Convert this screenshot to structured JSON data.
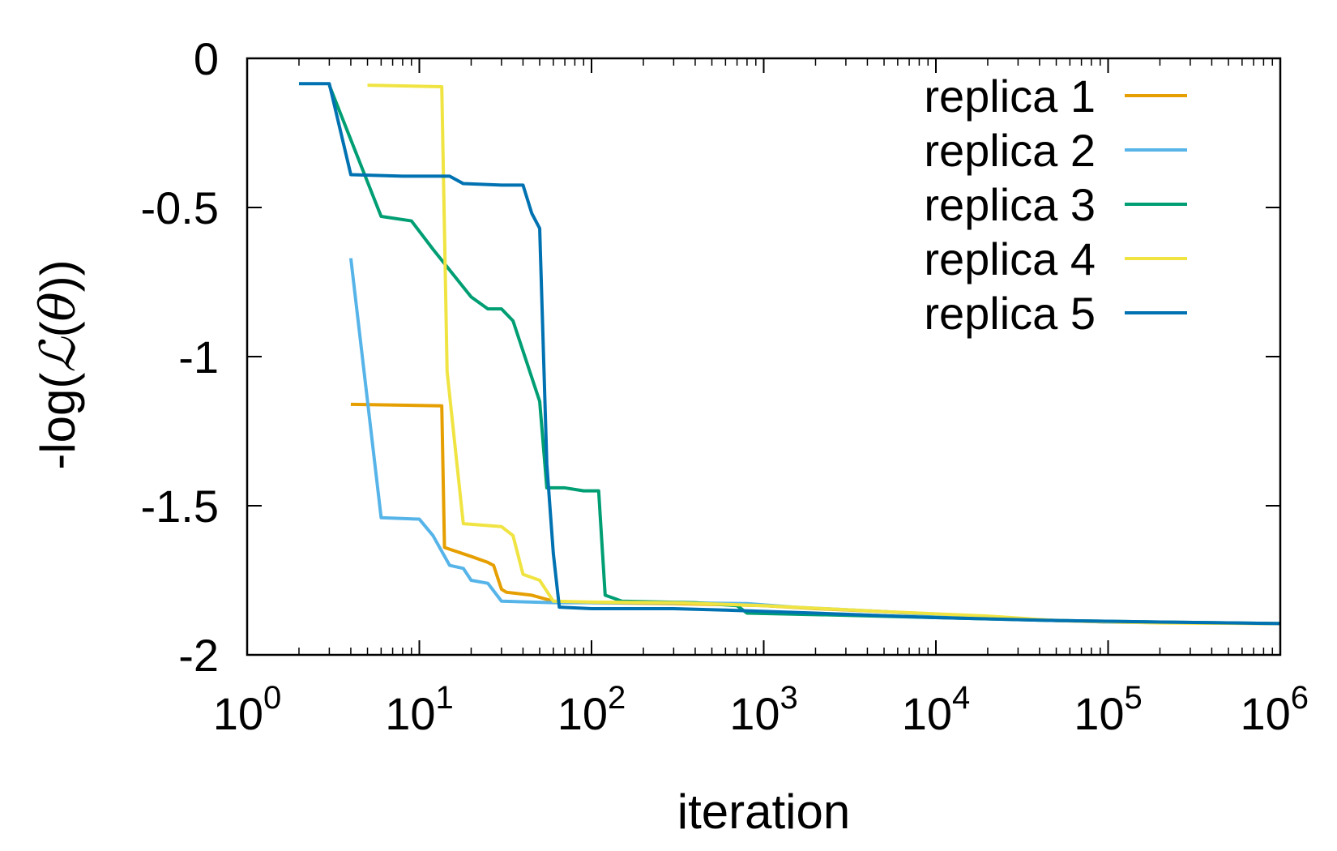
{
  "chart_data": {
    "type": "line",
    "title": "",
    "xlabel": "iteration",
    "ylabel": {
      "prefix": "-log(",
      "symbol": "ℒ",
      "open_paren": "(",
      "theta": "θ",
      "close": "))"
    },
    "xscale": "log10",
    "xlim": [
      1,
      1000000
    ],
    "ylim": [
      -2,
      0
    ],
    "xticks": [
      {
        "value": 1,
        "base": "10",
        "exp": "0"
      },
      {
        "value": 10,
        "base": "10",
        "exp": "1"
      },
      {
        "value": 100,
        "base": "10",
        "exp": "2"
      },
      {
        "value": 1000,
        "base": "10",
        "exp": "3"
      },
      {
        "value": 10000,
        "base": "10",
        "exp": "4"
      },
      {
        "value": 100000,
        "base": "10",
        "exp": "5"
      },
      {
        "value": 1000000,
        "base": "10",
        "exp": "6"
      }
    ],
    "yticks": [
      {
        "value": 0,
        "label": "0"
      },
      {
        "value": -0.5,
        "label": "-0.5"
      },
      {
        "value": -1,
        "label": "-1"
      },
      {
        "value": -1.5,
        "label": "-1.5"
      },
      {
        "value": -2,
        "label": "-2"
      }
    ],
    "legend_position": "top-right",
    "grid": false,
    "series": [
      {
        "name": "replica 1",
        "color": "#e69f00",
        "points": [
          [
            4,
            -1.16
          ],
          [
            13.5,
            -1.165
          ],
          [
            14,
            -1.64
          ],
          [
            20,
            -1.67
          ],
          [
            25,
            -1.69
          ],
          [
            27,
            -1.7
          ],
          [
            30,
            -1.78
          ],
          [
            32,
            -1.79
          ],
          [
            45,
            -1.8
          ],
          [
            60,
            -1.82
          ],
          [
            100,
            -1.825
          ],
          [
            300,
            -1.828
          ],
          [
            1000,
            -1.835
          ],
          [
            2000,
            -1.845
          ],
          [
            5000,
            -1.855
          ],
          [
            10000,
            -1.865
          ],
          [
            20000,
            -1.875
          ],
          [
            50000,
            -1.885
          ],
          [
            100000,
            -1.89
          ],
          [
            300000,
            -1.893
          ],
          [
            1000000,
            -1.895
          ]
        ]
      },
      {
        "name": "replica 2",
        "color": "#56b4e9",
        "points": [
          [
            4,
            -0.67
          ],
          [
            6,
            -1.54
          ],
          [
            10,
            -1.545
          ],
          [
            12,
            -1.6
          ],
          [
            15,
            -1.7
          ],
          [
            18,
            -1.71
          ],
          [
            20,
            -1.75
          ],
          [
            25,
            -1.76
          ],
          [
            30,
            -1.82
          ],
          [
            60,
            -1.825
          ],
          [
            200,
            -1.825
          ],
          [
            800,
            -1.828
          ],
          [
            1500,
            -1.84
          ],
          [
            5000,
            -1.855
          ],
          [
            10000,
            -1.865
          ],
          [
            30000,
            -1.88
          ],
          [
            100000,
            -1.89
          ],
          [
            1000000,
            -1.895
          ]
        ]
      },
      {
        "name": "replica 3",
        "color": "#009e73",
        "points": [
          [
            3,
            -0.09
          ],
          [
            6,
            -0.53
          ],
          [
            9,
            -0.545
          ],
          [
            12,
            -0.64
          ],
          [
            20,
            -0.8
          ],
          [
            25,
            -0.84
          ],
          [
            30,
            -0.84
          ],
          [
            35,
            -0.88
          ],
          [
            50,
            -1.15
          ],
          [
            55,
            -1.44
          ],
          [
            70,
            -1.44
          ],
          [
            90,
            -1.45
          ],
          [
            110,
            -1.45
          ],
          [
            120,
            -1.8
          ],
          [
            150,
            -1.82
          ],
          [
            400,
            -1.825
          ],
          [
            700,
            -1.835
          ],
          [
            800,
            -1.86
          ],
          [
            2000,
            -1.865
          ],
          [
            10000,
            -1.875
          ],
          [
            50000,
            -1.885
          ],
          [
            200000,
            -1.89
          ],
          [
            1000000,
            -1.895
          ]
        ]
      },
      {
        "name": "replica 4",
        "color": "#f0e442",
        "points": [
          [
            5,
            -0.09
          ],
          [
            13.5,
            -0.095
          ],
          [
            14.5,
            -1.05
          ],
          [
            18,
            -1.56
          ],
          [
            30,
            -1.57
          ],
          [
            35,
            -1.6
          ],
          [
            40,
            -1.73
          ],
          [
            50,
            -1.75
          ],
          [
            60,
            -1.82
          ],
          [
            100,
            -1.823
          ],
          [
            300,
            -1.825
          ],
          [
            1000,
            -1.835
          ],
          [
            5000,
            -1.855
          ],
          [
            20000,
            -1.87
          ],
          [
            50000,
            -1.885
          ],
          [
            200000,
            -1.893
          ],
          [
            1000000,
            -1.895
          ]
        ]
      },
      {
        "name": "replica 5",
        "color": "#0072b2",
        "points": [
          [
            2,
            -0.085
          ],
          [
            3,
            -0.085
          ],
          [
            4,
            -0.39
          ],
          [
            8,
            -0.395
          ],
          [
            15,
            -0.395
          ],
          [
            18,
            -0.42
          ],
          [
            30,
            -0.425
          ],
          [
            40,
            -0.425
          ],
          [
            45,
            -0.52
          ],
          [
            50,
            -0.57
          ],
          [
            55,
            -1.36
          ],
          [
            60,
            -1.66
          ],
          [
            65,
            -1.84
          ],
          [
            100,
            -1.845
          ],
          [
            300,
            -1.845
          ],
          [
            600,
            -1.85
          ],
          [
            2000,
            -1.86
          ],
          [
            10000,
            -1.875
          ],
          [
            50000,
            -1.885
          ],
          [
            200000,
            -1.89
          ],
          [
            1000000,
            -1.895
          ]
        ]
      }
    ]
  }
}
